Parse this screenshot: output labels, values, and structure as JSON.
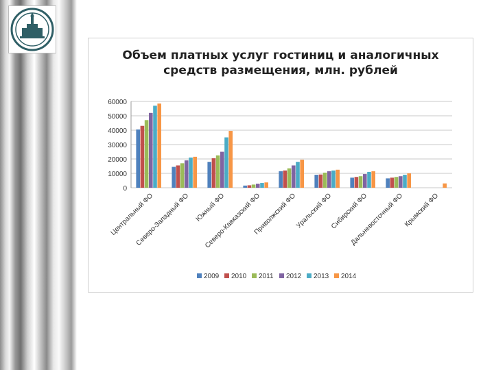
{
  "chart_data": {
    "type": "bar",
    "title_line1": "Объем платных услуг гостиниц и аналогичных",
    "title_line2": "средств размещения, млн. рублей",
    "categories": [
      "Центральный ФО",
      "Северо-Западный ФО",
      "Южный ФО",
      "Северо-Кавказский ФО",
      "Приволжский ФО",
      "Уральский ФО",
      "Сибирский ФО",
      "Дальневосточный ФО",
      "Крымский ФО"
    ],
    "series": [
      {
        "name": "2009",
        "color": "#4f81bd",
        "values": [
          40500,
          14500,
          18000,
          1500,
          11500,
          9000,
          7000,
          6500,
          0
        ]
      },
      {
        "name": "2010",
        "color": "#c0504d",
        "values": [
          43000,
          15500,
          20500,
          1700,
          12000,
          9200,
          7500,
          7000,
          0
        ]
      },
      {
        "name": "2011",
        "color": "#9bbb59",
        "values": [
          47000,
          17000,
          22500,
          2200,
          13500,
          10500,
          8000,
          7500,
          0
        ]
      },
      {
        "name": "2012",
        "color": "#8064a2",
        "values": [
          52000,
          19000,
          25000,
          2800,
          15500,
          11500,
          9500,
          8000,
          0
        ]
      },
      {
        "name": "2013",
        "color": "#4bacc6",
        "values": [
          57000,
          21000,
          35000,
          3300,
          18000,
          12000,
          11000,
          9000,
          0
        ]
      },
      {
        "name": "2014",
        "color": "#f79646",
        "values": [
          58500,
          21500,
          39500,
          3700,
          19500,
          12500,
          11500,
          10000,
          3000
        ]
      }
    ],
    "y_ticks": [
      "0",
      "10000",
      "20000",
      "30000",
      "40000",
      "50000",
      "60000"
    ],
    "ylim": [
      0,
      60000
    ],
    "grid": true,
    "legend_position": "bottom"
  }
}
